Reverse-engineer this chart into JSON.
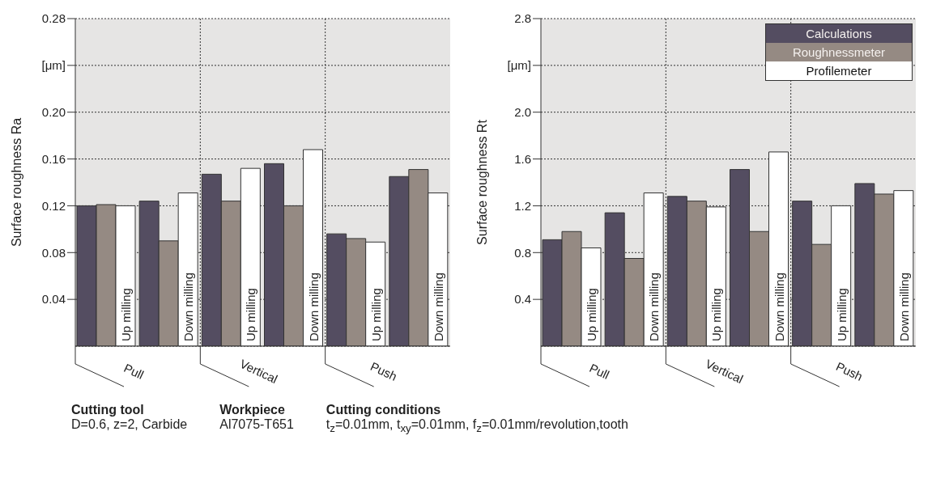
{
  "chart_data": [
    {
      "type": "bar",
      "ylabel": "Surface roughness Ra",
      "categories": [
        null,
        null,
        null,
        null,
        null,
        null
      ],
      "series": [
        {
          "color": "#544d61",
          "values": [
            0.12,
            0.124,
            0.147,
            0.156,
            0.096,
            0.145
          ]
        },
        {
          "color": "#958a83",
          "values": [
            0.121,
            0.09,
            0.124,
            0.12,
            0.092,
            0.151
          ]
        },
        {
          "color": "#ffffff",
          "values": [
            0.12,
            0.131,
            0.152,
            0.168,
            0.089,
            0.131
          ],
          "value_labels": [
            "Up milling",
            "Down milling",
            "Up milling",
            "Down milling",
            "Up milling",
            "Down milling"
          ]
        }
      ],
      "ylim": [
        0,
        0.28
      ],
      "yticks": [
        0.04,
        0.08,
        0.12,
        0.16,
        {
          "value": 0.2,
          "label": "0.20"
        },
        {
          "value": 0.24,
          "label": "[μm]"
        },
        0.28
      ],
      "grid": "y",
      "legend": false,
      "annotations": [
        "Pull",
        "Vertical",
        "Push",
        "Cutting tool",
        "D=0.6, z=2, Carbide",
        "Workpiece",
        "Al7075-T651",
        "Cutting conditions",
        "t$_{z}$=0.01mm, t$_{xy}$=0.01mm, f$_{z}$=0.01mm/revolution,tooth"
      ]
    },
    {
      "type": "bar",
      "ylabel": "Surface roughness Rt",
      "categories": [
        null,
        null,
        null,
        null,
        null,
        null
      ],
      "series": [
        {
          "name": "Calculations",
          "color": "#544d61",
          "values": [
            0.91,
            1.14,
            1.28,
            1.51,
            1.24,
            1.39
          ]
        },
        {
          "name": "Roughnessmeter",
          "color": "#958a83",
          "values": [
            0.98,
            0.75,
            1.24,
            0.98,
            0.87,
            1.3
          ]
        },
        {
          "name": "Profilemeter",
          "color": "#ffffff",
          "values": [
            0.84,
            1.31,
            1.19,
            1.66,
            1.2,
            1.33
          ],
          "value_labels": [
            "Up milling",
            "Down milling",
            "Up milling",
            "Down milling",
            "Up milling",
            "Down milling"
          ]
        }
      ],
      "ylim": [
        0,
        2.8
      ],
      "yticks": [
        0.4,
        0.8,
        1.2,
        1.6,
        {
          "value": 2,
          "label": "2.0"
        },
        {
          "value": 2.4,
          "label": "[μm]"
        },
        2.8
      ],
      "grid": "y",
      "legend": "top right",
      "annotations": [
        "Pull",
        "Vertical",
        "Push"
      ]
    }
  ]
}
